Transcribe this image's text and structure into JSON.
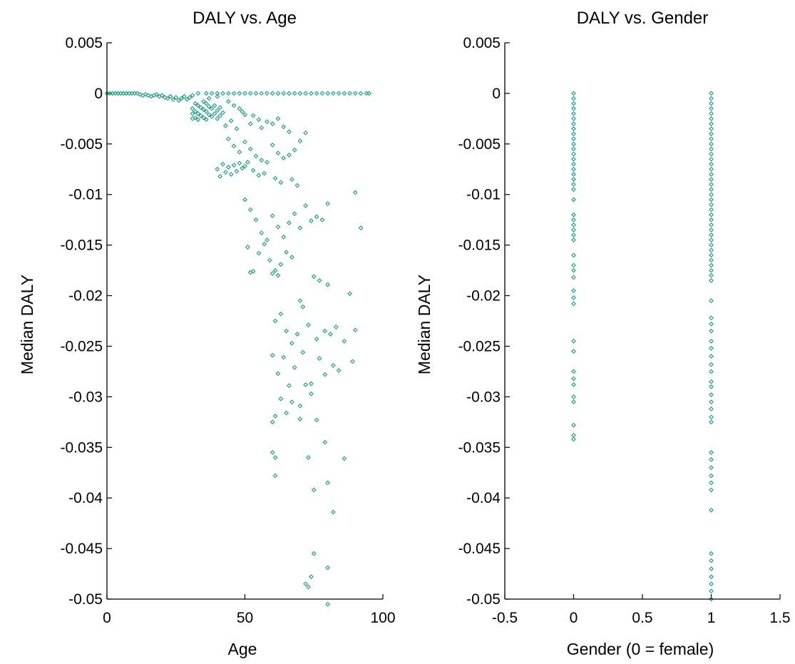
{
  "chart_data": [
    {
      "type": "scatter",
      "title": "DALY vs. Age",
      "xlabel": "Age",
      "ylabel": "Median DALY",
      "xlim": [
        0,
        100
      ],
      "ylim": [
        -0.05,
        0.005
      ],
      "xticks": [
        0,
        50,
        100
      ],
      "xtick_labels": [
        "0",
        "50",
        "100"
      ],
      "yticks": [
        0.005,
        0,
        -0.005,
        -0.01,
        -0.015,
        -0.02,
        -0.025,
        -0.03,
        -0.035,
        -0.04,
        -0.045,
        -0.05
      ],
      "ytick_labels": [
        "0.005",
        "0",
        "-0.005",
        "-0.01",
        "-0.015",
        "-0.02",
        "-0.025",
        "-0.03",
        "-0.035",
        "-0.04",
        "-0.045",
        "-0.05"
      ],
      "grid": false,
      "marker_color": "#1a9a80",
      "points": [
        [
          0,
          0
        ],
        [
          1,
          0
        ],
        [
          2,
          0
        ],
        [
          3,
          0
        ],
        [
          4,
          0
        ],
        [
          5,
          0
        ],
        [
          6,
          0
        ],
        [
          7,
          0
        ],
        [
          8,
          0
        ],
        [
          9,
          0
        ],
        [
          10,
          0
        ],
        [
          11,
          0
        ],
        [
          12,
          -0.0001
        ],
        [
          13,
          -0.0002
        ],
        [
          14,
          -0.0001
        ],
        [
          15,
          -0.0002
        ],
        [
          16,
          -0.0003
        ],
        [
          17,
          -0.0002
        ],
        [
          18,
          -0.0001
        ],
        [
          19,
          -0.0003
        ],
        [
          20,
          -0.0002
        ],
        [
          21,
          -0.0004
        ],
        [
          22,
          -0.0005
        ],
        [
          23,
          -0.0003
        ],
        [
          24,
          -0.0006
        ],
        [
          25,
          -0.0004
        ],
        [
          26,
          -0.0007
        ],
        [
          27,
          -0.0005
        ],
        [
          28,
          -0.0003
        ],
        [
          29,
          -0.0006
        ],
        [
          30,
          -0.0004
        ],
        [
          31,
          -0.0002
        ],
        [
          33,
          0
        ],
        [
          36,
          0
        ],
        [
          38,
          0
        ],
        [
          40,
          0
        ],
        [
          42,
          0
        ],
        [
          44,
          0
        ],
        [
          46,
          0
        ],
        [
          48,
          0
        ],
        [
          50,
          0
        ],
        [
          52,
          0
        ],
        [
          54,
          0
        ],
        [
          56,
          0
        ],
        [
          58,
          0
        ],
        [
          60,
          0
        ],
        [
          62,
          0
        ],
        [
          64,
          0
        ],
        [
          66,
          0
        ],
        [
          68,
          0
        ],
        [
          70,
          0
        ],
        [
          72,
          0
        ],
        [
          74,
          0
        ],
        [
          76,
          0
        ],
        [
          78,
          0
        ],
        [
          80,
          0
        ],
        [
          82,
          0
        ],
        [
          84,
          0
        ],
        [
          86,
          0
        ],
        [
          88,
          0
        ],
        [
          90,
          0
        ],
        [
          92,
          0
        ],
        [
          94,
          0
        ],
        [
          95,
          0
        ],
        [
          31,
          -0.0015
        ],
        [
          31,
          -0.002
        ],
        [
          31,
          -0.0025
        ],
        [
          32,
          -0.001
        ],
        [
          32,
          -0.0018
        ],
        [
          32,
          -0.0024
        ],
        [
          33,
          -0.0012
        ],
        [
          33,
          -0.002
        ],
        [
          33,
          -0.0026
        ],
        [
          34,
          -0.0014
        ],
        [
          34,
          -0.0022
        ],
        [
          35,
          -0.0008
        ],
        [
          35,
          -0.0016
        ],
        [
          35,
          -0.0024
        ],
        [
          36,
          -0.001
        ],
        [
          36,
          -0.0018
        ],
        [
          36,
          -0.0026
        ],
        [
          37,
          -0.0013
        ],
        [
          37,
          -0.0021
        ],
        [
          38,
          -0.0015
        ],
        [
          38,
          -0.0023
        ],
        [
          39,
          -0.0012
        ],
        [
          39,
          -0.002
        ],
        [
          40,
          -0.0017
        ],
        [
          40,
          -0.0025
        ],
        [
          41,
          -0.0014
        ],
        [
          41,
          -0.0022
        ],
        [
          42,
          -0.0019
        ],
        [
          37,
          -0.0005
        ],
        [
          40,
          -0.0003
        ],
        [
          44,
          -0.0008
        ],
        [
          46,
          -0.0012
        ],
        [
          48,
          -0.0015
        ],
        [
          49,
          -0.0018
        ],
        [
          50,
          -0.0021
        ],
        [
          43,
          -0.0032
        ],
        [
          45,
          -0.0027
        ],
        [
          47,
          -0.0035
        ],
        [
          52,
          -0.003
        ],
        [
          53,
          -0.0022
        ],
        [
          55,
          -0.0026
        ],
        [
          56,
          -0.0034
        ],
        [
          58,
          -0.0028
        ],
        [
          60,
          -0.003
        ],
        [
          62,
          -0.0025
        ],
        [
          64,
          -0.0033
        ],
        [
          66,
          -0.0038
        ],
        [
          44,
          -0.0045
        ],
        [
          46,
          -0.0052
        ],
        [
          48,
          -0.0058
        ],
        [
          50,
          -0.0048
        ],
        [
          52,
          -0.0055
        ],
        [
          54,
          -0.0062
        ],
        [
          56,
          -0.0066
        ],
        [
          58,
          -0.0068
        ],
        [
          60,
          -0.0051
        ],
        [
          62,
          -0.0059
        ],
        [
          64,
          -0.0064
        ],
        [
          66,
          -0.0061
        ],
        [
          68,
          -0.0056
        ],
        [
          70,
          -0.0047
        ],
        [
          72,
          -0.0039
        ],
        [
          40,
          -0.0075
        ],
        [
          41,
          -0.0082
        ],
        [
          42,
          -0.007
        ],
        [
          43,
          -0.0078
        ],
        [
          44,
          -0.0073
        ],
        [
          45,
          -0.008
        ],
        [
          46,
          -0.0071
        ],
        [
          47,
          -0.0077
        ],
        [
          48,
          -0.0069
        ],
        [
          49,
          -0.0074
        ],
        [
          50,
          -0.0072
        ],
        [
          51,
          -0.0068
        ],
        [
          53,
          -0.0076
        ],
        [
          55,
          -0.0081
        ],
        [
          57,
          -0.0079
        ],
        [
          61,
          -0.0084
        ],
        [
          63,
          -0.0088
        ],
        [
          67,
          -0.0085
        ],
        [
          69,
          -0.0091
        ],
        [
          50,
          -0.0105
        ],
        [
          52,
          -0.0115
        ],
        [
          54,
          -0.0125
        ],
        [
          56,
          -0.0138
        ],
        [
          58,
          -0.0145
        ],
        [
          60,
          -0.0121
        ],
        [
          62,
          -0.0132
        ],
        [
          64,
          -0.0142
        ],
        [
          66,
          -0.0128
        ],
        [
          68,
          -0.0119
        ],
        [
          70,
          -0.0133
        ],
        [
          72,
          -0.0111
        ],
        [
          74,
          -0.0126
        ],
        [
          76,
          -0.0122
        ],
        [
          78,
          -0.0125
        ],
        [
          80,
          -0.0109
        ],
        [
          90,
          -0.0098
        ],
        [
          92,
          -0.0133
        ],
        [
          51,
          -0.0152
        ],
        [
          53,
          -0.0176
        ],
        [
          55,
          -0.0158
        ],
        [
          57,
          -0.0149
        ],
        [
          59,
          -0.0165
        ],
        [
          61,
          -0.0175
        ],
        [
          63,
          -0.0169
        ],
        [
          65,
          -0.0157
        ],
        [
          67,
          -0.0162
        ],
        [
          52,
          -0.0177
        ],
        [
          60,
          -0.0178
        ],
        [
          62,
          -0.018
        ],
        [
          75,
          -0.0181
        ],
        [
          77,
          -0.0185
        ],
        [
          80,
          -0.0189
        ],
        [
          88,
          -0.0198
        ],
        [
          70,
          -0.0205
        ],
        [
          71,
          -0.0211
        ],
        [
          61,
          -0.0225
        ],
        [
          63,
          -0.0218
        ],
        [
          65,
          -0.0235
        ],
        [
          67,
          -0.0247
        ],
        [
          69,
          -0.0238
        ],
        [
          73,
          -0.0229
        ],
        [
          76,
          -0.0243
        ],
        [
          79,
          -0.0235
        ],
        [
          81,
          -0.0238
        ],
        [
          83,
          -0.0231
        ],
        [
          86,
          -0.0245
        ],
        [
          90,
          -0.0234
        ],
        [
          60,
          -0.0259
        ],
        [
          62,
          -0.0277
        ],
        [
          64,
          -0.0261
        ],
        [
          66,
          -0.0289
        ],
        [
          68,
          -0.0271
        ],
        [
          71,
          -0.0256
        ],
        [
          74,
          -0.0287
        ],
        [
          77,
          -0.0262
        ],
        [
          79,
          -0.0278
        ],
        [
          82,
          -0.0269
        ],
        [
          84,
          -0.0274
        ],
        [
          89,
          -0.0265
        ],
        [
          63,
          -0.0302
        ],
        [
          65,
          -0.0316
        ],
        [
          67,
          -0.0305
        ],
        [
          70,
          -0.0309
        ],
        [
          72,
          -0.0288
        ],
        [
          74,
          -0.0297
        ],
        [
          60,
          -0.0325
        ],
        [
          61,
          -0.0319
        ],
        [
          70,
          -0.0322
        ],
        [
          76,
          -0.0323
        ],
        [
          60,
          -0.0355
        ],
        [
          61,
          -0.036
        ],
        [
          61,
          -0.0378
        ],
        [
          73,
          -0.036
        ],
        [
          79,
          -0.0345
        ],
        [
          86,
          -0.0361
        ],
        [
          80,
          -0.0385
        ],
        [
          75,
          -0.0392
        ],
        [
          82,
          -0.0414
        ],
        [
          75,
          -0.0455
        ],
        [
          80,
          -0.0469
        ],
        [
          72,
          -0.0485
        ],
        [
          73,
          -0.0488
        ],
        [
          74,
          -0.0478
        ],
        [
          80,
          -0.0505
        ]
      ]
    },
    {
      "type": "scatter",
      "title": "DALY vs. Gender",
      "xlabel": "Gender (0 = female)",
      "ylabel": "Median DALY",
      "xlim": [
        -0.5,
        1.5
      ],
      "ylim": [
        -0.05,
        0.005
      ],
      "xticks": [
        -0.5,
        0,
        0.5,
        1,
        1.5
      ],
      "xtick_labels": [
        "-0.5",
        "0",
        "0.5",
        "1",
        "1.5"
      ],
      "yticks": [
        0.005,
        0,
        -0.005,
        -0.01,
        -0.015,
        -0.02,
        -0.025,
        -0.03,
        -0.035,
        -0.04,
        -0.045,
        -0.05
      ],
      "ytick_labels": [
        "0.005",
        "0",
        "-0.005",
        "-0.01",
        "-0.015",
        "-0.02",
        "-0.025",
        "-0.03",
        "-0.035",
        "-0.04",
        "-0.045",
        "-0.05"
      ],
      "grid": false,
      "marker_color": "#1a9a80",
      "points": [
        [
          0,
          0
        ],
        [
          0,
          -0.0005
        ],
        [
          0,
          -0.001
        ],
        [
          0,
          -0.0015
        ],
        [
          0,
          -0.002
        ],
        [
          0,
          -0.0025
        ],
        [
          0,
          -0.003
        ],
        [
          0,
          -0.0035
        ],
        [
          0,
          -0.004
        ],
        [
          0,
          -0.0045
        ],
        [
          0,
          -0.005
        ],
        [
          0,
          -0.0055
        ],
        [
          0,
          -0.006
        ],
        [
          0,
          -0.0065
        ],
        [
          0,
          -0.007
        ],
        [
          0,
          -0.0075
        ],
        [
          0,
          -0.008
        ],
        [
          0,
          -0.0085
        ],
        [
          0,
          -0.009
        ],
        [
          0,
          -0.0095
        ],
        [
          0,
          -0.0105
        ],
        [
          0,
          -0.012
        ],
        [
          0,
          -0.0125
        ],
        [
          0,
          -0.013
        ],
        [
          0,
          -0.0135
        ],
        [
          0,
          -0.014
        ],
        [
          0,
          -0.0145
        ],
        [
          0,
          -0.016
        ],
        [
          0,
          -0.017
        ],
        [
          0,
          -0.0175
        ],
        [
          0,
          -0.0182
        ],
        [
          0,
          -0.0195
        ],
        [
          0,
          -0.0202
        ],
        [
          0,
          -0.0208
        ],
        [
          0,
          -0.0245
        ],
        [
          0,
          -0.0255
        ],
        [
          0,
          -0.0275
        ],
        [
          0,
          -0.0282
        ],
        [
          0,
          -0.0288
        ],
        [
          0,
          -0.03
        ],
        [
          0,
          -0.0305
        ],
        [
          0,
          -0.0328
        ],
        [
          0,
          -0.0338
        ],
        [
          0,
          -0.0342
        ],
        [
          1,
          0
        ],
        [
          1,
          -0.0005
        ],
        [
          1,
          -0.001
        ],
        [
          1,
          -0.0015
        ],
        [
          1,
          -0.002
        ],
        [
          1,
          -0.0025
        ],
        [
          1,
          -0.003
        ],
        [
          1,
          -0.0035
        ],
        [
          1,
          -0.004
        ],
        [
          1,
          -0.0045
        ],
        [
          1,
          -0.005
        ],
        [
          1,
          -0.0055
        ],
        [
          1,
          -0.006
        ],
        [
          1,
          -0.0065
        ],
        [
          1,
          -0.007
        ],
        [
          1,
          -0.0075
        ],
        [
          1,
          -0.008
        ],
        [
          1,
          -0.0085
        ],
        [
          1,
          -0.009
        ],
        [
          1,
          -0.0095
        ],
        [
          1,
          -0.01
        ],
        [
          1,
          -0.0105
        ],
        [
          1,
          -0.011
        ],
        [
          1,
          -0.0115
        ],
        [
          1,
          -0.012
        ],
        [
          1,
          -0.0125
        ],
        [
          1,
          -0.013
        ],
        [
          1,
          -0.0135
        ],
        [
          1,
          -0.014
        ],
        [
          1,
          -0.0145
        ],
        [
          1,
          -0.015
        ],
        [
          1,
          -0.0155
        ],
        [
          1,
          -0.016
        ],
        [
          1,
          -0.0165
        ],
        [
          1,
          -0.017
        ],
        [
          1,
          -0.0175
        ],
        [
          1,
          -0.018
        ],
        [
          1,
          -0.0185
        ],
        [
          1,
          -0.0205
        ],
        [
          1,
          -0.0222
        ],
        [
          1,
          -0.0228
        ],
        [
          1,
          -0.0235
        ],
        [
          1,
          -0.0245
        ],
        [
          1,
          -0.0252
        ],
        [
          1,
          -0.026
        ],
        [
          1,
          -0.0268
        ],
        [
          1,
          -0.0275
        ],
        [
          1,
          -0.0285
        ],
        [
          1,
          -0.029
        ],
        [
          1,
          -0.0298
        ],
        [
          1,
          -0.0305
        ],
        [
          1,
          -0.0312
        ],
        [
          1,
          -0.032
        ],
        [
          1,
          -0.0325
        ],
        [
          1,
          -0.0355
        ],
        [
          1,
          -0.0362
        ],
        [
          1,
          -0.037
        ],
        [
          1,
          -0.0378
        ],
        [
          1,
          -0.0385
        ],
        [
          1,
          -0.0392
        ],
        [
          1,
          -0.0412
        ],
        [
          1,
          -0.0455
        ],
        [
          1,
          -0.0462
        ],
        [
          1,
          -0.047
        ],
        [
          1,
          -0.0478
        ],
        [
          1,
          -0.0485
        ],
        [
          1,
          -0.0492
        ],
        [
          1,
          -0.05
        ]
      ]
    }
  ]
}
